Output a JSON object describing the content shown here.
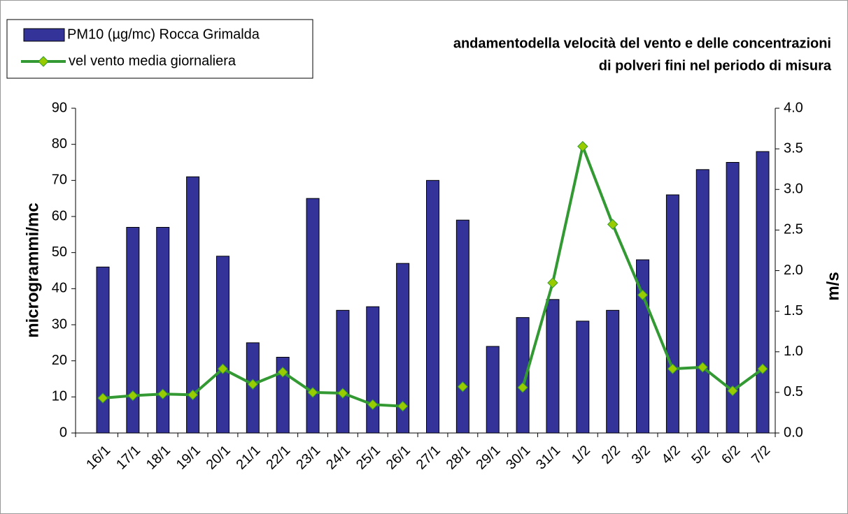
{
  "chart_data": {
    "type": "bar_line",
    "title": [
      "andamentodella  velocità del vento e delle concentrazioni",
      "di polveri fini nel periodo di misura"
    ],
    "y_label": "microgrammi/mc",
    "y2_label": "m/s",
    "categories": [
      "16/1",
      "17/1",
      "18/1",
      "19/1",
      "20/1",
      "21/1",
      "22/1",
      "23/1",
      "24/1",
      "25/1",
      "26/1",
      "27/1",
      "28/1",
      "29/1",
      "30/1",
      "31/1",
      "1/2",
      "2/2",
      "3/2",
      "4/2",
      "5/2",
      "6/2",
      "7/2"
    ],
    "series": [
      {
        "name": "PM10  (µg/mc) Rocca Grimalda",
        "type": "bar",
        "color": "#333399",
        "values": [
          46,
          57,
          57,
          71,
          49,
          25,
          21,
          65,
          34,
          35,
          47,
          70,
          59,
          24,
          32,
          37,
          31,
          34,
          48,
          66,
          73,
          75,
          78
        ]
      },
      {
        "name": "vel vento media giornaliera",
        "type": "line",
        "axis": "y2",
        "color": "#339933",
        "marker_color": "#99cc00",
        "values": [
          0.43,
          0.46,
          0.48,
          0.47,
          0.79,
          0.6,
          0.75,
          0.5,
          0.49,
          0.35,
          0.33,
          null,
          0.57,
          null,
          0.56,
          1.85,
          3.53,
          2.57,
          1.7,
          0.79,
          0.81,
          0.52,
          0.79
        ]
      }
    ],
    "ylim": [
      0,
      90
    ],
    "yticks": [
      0,
      10,
      20,
      30,
      40,
      50,
      60,
      70,
      80,
      90
    ],
    "y2lim": [
      0,
      4
    ],
    "y2ticks": [
      {
        "value": 0,
        "label": "0.0"
      },
      {
        "value": 0.5,
        "label": "0.5"
      },
      {
        "value": 1,
        "label": "1.0"
      },
      {
        "value": 1.5,
        "label": "1.5"
      },
      {
        "value": 2,
        "label": "2.0"
      },
      {
        "value": 2.5,
        "label": "2.5"
      },
      {
        "value": 3,
        "label": "3.0"
      },
      {
        "value": 3.5,
        "label": "3.5"
      },
      {
        "value": 4,
        "label": "4.0"
      }
    ],
    "legend": "top-left"
  }
}
